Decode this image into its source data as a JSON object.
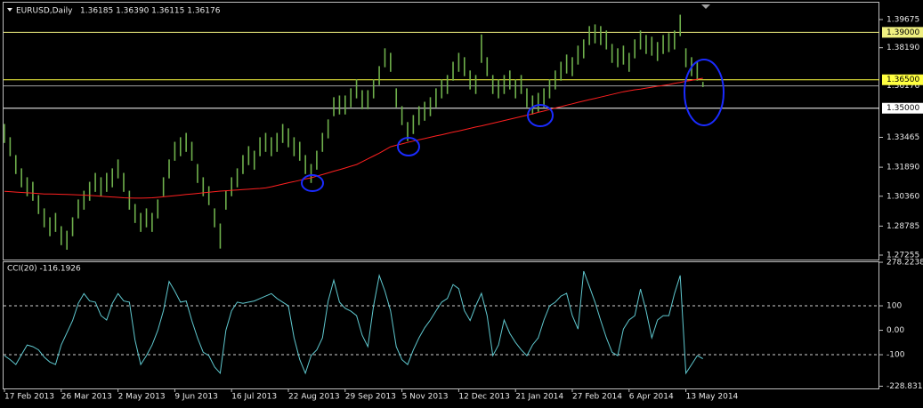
{
  "chart_data": [
    {
      "type": "bar",
      "title": "EURUSD,Daily",
      "quote": "1.36185 1.36390 1.36115 1.36176",
      "categories": [
        "17 Feb 2013",
        null,
        null,
        null,
        null,
        null,
        null,
        null,
        null,
        null,
        "26 Mar 2013",
        null,
        null,
        null,
        null,
        null,
        null,
        null,
        null,
        null,
        "2 May 2013",
        null,
        null,
        null,
        null,
        null,
        null,
        null,
        null,
        null,
        "9 Jun 2013",
        null,
        null,
        null,
        null,
        null,
        null,
        null,
        null,
        null,
        "16 Jul 2013",
        null,
        null,
        null,
        null,
        null,
        null,
        null,
        null,
        null,
        "22 Aug 2013",
        null,
        null,
        null,
        null,
        null,
        null,
        null,
        null,
        null,
        "29 Sep 2013",
        null,
        null,
        null,
        null,
        null,
        null,
        null,
        null,
        null,
        "5 Nov 2013",
        null,
        null,
        null,
        null,
        null,
        null,
        null,
        null,
        null,
        "12 Dec 2013",
        null,
        null,
        null,
        null,
        null,
        null,
        null,
        null,
        null,
        "21 Jan 2014",
        null,
        null,
        null,
        null,
        null,
        null,
        null,
        null,
        null,
        "27 Feb 2014",
        null,
        null,
        null,
        null,
        null,
        null,
        null,
        null,
        null,
        "6 Apr 2014",
        null,
        null,
        null,
        null,
        null,
        null,
        null,
        null,
        null,
        "13 May 2014",
        null,
        null,
        null
      ],
      "high": [
        1.3417,
        1.3347,
        1.3253,
        1.3183,
        1.3136,
        1.3112,
        1.3042,
        1.2972,
        1.2925,
        1.2948,
        1.2878,
        1.2854,
        1.2925,
        1.3019,
        1.3065,
        1.3112,
        1.3159,
        1.3136,
        1.3159,
        1.3183,
        1.323,
        1.3159,
        1.3065,
        1.2995,
        1.2948,
        1.2972,
        1.2948,
        1.3019,
        1.3136,
        1.323,
        1.3323,
        1.3347,
        1.337,
        1.3323,
        1.3206,
        1.3136,
        1.3089,
        1.2972,
        1.2892,
        1.3065,
        1.3136,
        1.3183,
        1.3253,
        1.33,
        1.3276,
        1.3347,
        1.337,
        1.3347,
        1.337,
        1.3417,
        1.3394,
        1.3347,
        1.3323,
        1.3253,
        1.3206,
        1.3276,
        1.337,
        1.3441,
        1.3558,
        1.3567,
        1.3567,
        1.3605,
        1.3652,
        1.3595,
        1.3595,
        1.3652,
        1.3722,
        1.3816,
        1.3792,
        1.3605,
        1.3511,
        1.3427,
        1.3464,
        1.3511,
        1.3534,
        1.3558,
        1.3605,
        1.3652,
        1.3675,
        1.3745,
        1.3792,
        1.3769,
        1.3699,
        1.3675,
        1.3889,
        1.3769,
        1.3675,
        1.3652,
        1.3675,
        1.3699,
        1.3652,
        1.3675,
        1.3605,
        1.3567,
        1.3581,
        1.3605,
        1.3652,
        1.3699,
        1.3745,
        1.3783,
        1.3769,
        1.383,
        1.3863,
        1.3933,
        1.3942,
        1.3933,
        1.391,
        1.3839,
        1.3816,
        1.383,
        1.3792,
        1.3863,
        1.391,
        1.3886,
        1.3877,
        1.3849,
        1.3886,
        1.3896,
        1.391,
        1.3993,
        1.3816,
        1.3769,
        1.3745,
        1.3639
      ],
      "low": [
        1.3317,
        1.3247,
        1.3153,
        1.3083,
        1.3036,
        1.3012,
        1.2942,
        1.2872,
        1.2825,
        1.2848,
        1.2778,
        1.2754,
        1.2825,
        1.2919,
        1.2965,
        1.3012,
        1.3059,
        1.3036,
        1.3059,
        1.3083,
        1.313,
        1.3059,
        1.2965,
        1.2895,
        1.2848,
        1.2872,
        1.2848,
        1.2919,
        1.3036,
        1.313,
        1.3223,
        1.3247,
        1.327,
        1.3223,
        1.3106,
        1.3036,
        1.2989,
        1.2872,
        1.276,
        1.2965,
        1.3036,
        1.3083,
        1.3153,
        1.32,
        1.3176,
        1.3247,
        1.327,
        1.3247,
        1.327,
        1.3317,
        1.3294,
        1.3247,
        1.3223,
        1.3153,
        1.3106,
        1.3176,
        1.327,
        1.3341,
        1.3458,
        1.3467,
        1.3467,
        1.3505,
        1.3552,
        1.3495,
        1.3495,
        1.3552,
        1.3622,
        1.3716,
        1.3692,
        1.3505,
        1.3411,
        1.3327,
        1.3364,
        1.3411,
        1.3434,
        1.3458,
        1.3505,
        1.3552,
        1.3575,
        1.3645,
        1.3692,
        1.3669,
        1.3599,
        1.3575,
        1.3739,
        1.3669,
        1.3575,
        1.3552,
        1.3575,
        1.3599,
        1.3552,
        1.3575,
        1.3505,
        1.3467,
        1.3481,
        1.3505,
        1.3552,
        1.3599,
        1.3645,
        1.3683,
        1.3669,
        1.373,
        1.3763,
        1.3833,
        1.3842,
        1.3833,
        1.381,
        1.3739,
        1.3716,
        1.373,
        1.3692,
        1.3763,
        1.381,
        1.3786,
        1.3777,
        1.3749,
        1.3786,
        1.3796,
        1.381,
        1.388,
        1.3716,
        1.3669,
        1.3645,
        1.36115
      ],
      "color": "#6fb04c",
      "ma": {
        "color": "#ff2020",
        "values": [
          1.3062,
          1.306,
          1.3058,
          1.3056,
          1.3054,
          1.3052,
          1.305,
          1.3048,
          1.3048,
          1.3047,
          1.3046,
          1.3045,
          1.3044,
          1.3043,
          1.3042,
          1.304,
          1.3038,
          1.3036,
          1.3034,
          1.3032,
          1.303,
          1.3028,
          1.3027,
          1.3026,
          1.3026,
          1.3027,
          1.3028,
          1.303,
          1.3033,
          1.3036,
          1.3039,
          1.3042,
          1.3045,
          1.3048,
          1.3051,
          1.3054,
          1.3057,
          1.306,
          1.3063,
          1.3065,
          1.3067,
          1.3069,
          1.3071,
          1.3073,
          1.3075,
          1.3077,
          1.308,
          1.3086,
          1.3093,
          1.31,
          1.3107,
          1.3113,
          1.312,
          1.3127,
          1.3133,
          1.3142,
          1.315,
          1.3159,
          1.3168,
          1.3176,
          1.3185,
          1.3194,
          1.3203,
          1.3218,
          1.3233,
          1.3248,
          1.3263,
          1.328,
          1.3297,
          1.3305,
          1.3312,
          1.332,
          1.3327,
          1.3334,
          1.334,
          1.3347,
          1.3354,
          1.336,
          1.3367,
          1.3374,
          1.338,
          1.3387,
          1.3394,
          1.3401,
          1.3407,
          1.3414,
          1.3421,
          1.3428,
          1.3435,
          1.3442,
          1.3449,
          1.3456,
          1.3463,
          1.347,
          1.3478,
          1.3485,
          1.3493,
          1.3501,
          1.3508,
          1.3516,
          1.3523,
          1.3531,
          1.3538,
          1.3545,
          1.3552,
          1.3559,
          1.3566,
          1.3573,
          1.358,
          1.3587,
          1.3592,
          1.3597,
          1.3601,
          1.3606,
          1.3611,
          1.3616,
          1.362,
          1.3625,
          1.3631,
          1.3636,
          1.3642,
          1.3647,
          1.3653,
          1.3658
        ]
      },
      "ylim": [
        1.27021,
        1.40612
      ],
      "yticks": [
        1.39675,
        {
          "value": 1.3819,
          "label": "1.38190"
        },
        1.33465,
        {
          "value": 1.3189,
          "label": "1.31890"
        },
        {
          "value": 1.3036,
          "label": "1.30360"
        },
        1.28785,
        1.27255
      ],
      "levels": [
        {
          "value": 1.39,
          "label": "1.39000",
          "color": "#f0f080",
          "box": true
        },
        {
          "value": 1.36176,
          "color": "#a0a0a0"
        },
        {
          "value": 1.365,
          "label": "1.36500",
          "color": "#ffff40",
          "box": true
        },
        {
          "value": 1.35,
          "label": "1.35000",
          "color": "#ffffff",
          "box": true
        }
      ]
    },
    {
      "type": "line",
      "title": "CCI(20) -116.1926",
      "color": "#5fc8cf",
      "values": [
        -104,
        -120,
        -140,
        -100,
        -60,
        -67,
        -80,
        -110,
        -130,
        -140,
        -60,
        -10,
        40,
        110,
        150,
        120,
        115,
        60,
        42,
        110,
        150,
        120,
        115,
        -40,
        -140,
        -104,
        -60,
        0,
        80,
        200,
        160,
        115,
        120,
        40,
        -31,
        -90,
        -104,
        -150,
        -176,
        0,
        80,
        115,
        110,
        115,
        120,
        130,
        140,
        150,
        130,
        115,
        100,
        -31,
        -120,
        -176,
        -104,
        -80,
        -31,
        120,
        205,
        115,
        90,
        78,
        60,
        -20,
        -67,
        100,
        224,
        160,
        80,
        -67,
        -120,
        -140,
        -80,
        -31,
        10,
        42,
        80,
        115,
        130,
        187,
        170,
        80,
        40,
        100,
        151,
        60,
        -104,
        -60,
        42,
        -13,
        -50,
        -80,
        -104,
        -60,
        -31,
        42,
        100,
        115,
        140,
        151,
        60,
        5,
        242,
        180,
        115,
        40,
        -31,
        -90,
        -104,
        5,
        42,
        60,
        169,
        80,
        -31,
        42,
        60,
        60,
        150,
        224,
        -176,
        -140,
        -104,
        -116.1926
      ],
      "ylim": [
        -238,
        282
      ],
      "yticks": [
        278.2238,
        100,
        {
          "value": 0,
          "label": "0.00"
        },
        -100,
        -228.8311
      ],
      "levels": [
        100,
        -100
      ]
    }
  ]
}
